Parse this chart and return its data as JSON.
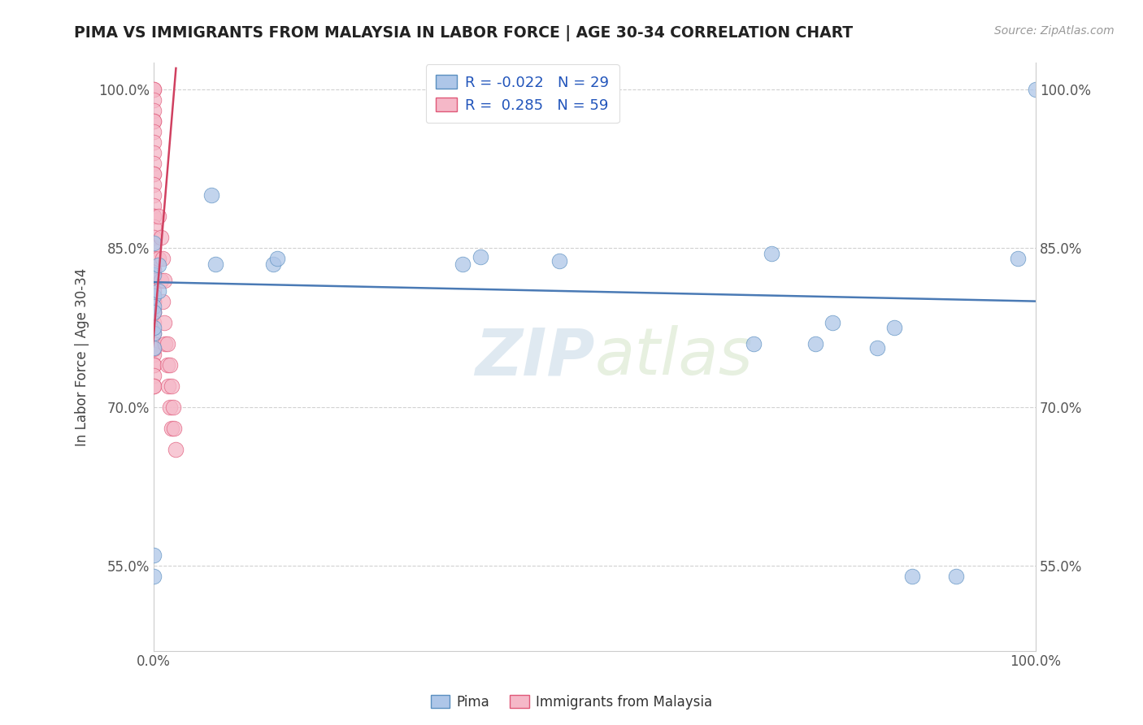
{
  "title": "PIMA VS IMMIGRANTS FROM MALAYSIA IN LABOR FORCE | AGE 30-34 CORRELATION CHART",
  "source": "Source: ZipAtlas.com",
  "ylabel": "In Labor Force | Age 30-34",
  "legend_pima_r": "-0.022",
  "legend_pima_n": "29",
  "legend_malaysia_r": "0.285",
  "legend_malaysia_n": "59",
  "watermark_zip": "ZIP",
  "watermark_atlas": "atlas",
  "pima_color": "#aec6e8",
  "malaysia_color": "#f5b8c8",
  "pima_edge_color": "#5a8fc0",
  "malaysia_edge_color": "#e05878",
  "pima_line_color": "#4a7ab5",
  "malaysia_line_color": "#d04060",
  "bg_color": "#ffffff",
  "grid_color": "#cccccc",
  "tick_color": "#555555",
  "title_color": "#222222",
  "source_color": "#999999",
  "ylabel_color": "#444444",
  "xlim": [
    0.0,
    1.0
  ],
  "ylim": [
    0.47,
    1.025
  ],
  "yticks": [
    0.55,
    0.7,
    0.85,
    1.0
  ],
  "ytick_labels": [
    "55.0%",
    "70.0%",
    "85.0%",
    "100.0%"
  ],
  "xtick_labels": [
    "0.0%",
    "100.0%"
  ],
  "pima_x": [
    0.0,
    0.0,
    0.0,
    0.0,
    0.0,
    0.0,
    0.005,
    0.005,
    0.065,
    0.07,
    0.135,
    0.14,
    0.0,
    0.0,
    0.35,
    0.37,
    0.46,
    0.68,
    0.7,
    0.75,
    0.77,
    0.82,
    0.84,
    0.86,
    0.91,
    0.98,
    1.0,
    0.0,
    0.0
  ],
  "pima_y": [
    0.805,
    0.825,
    0.855,
    0.795,
    0.77,
    0.79,
    0.834,
    0.81,
    0.9,
    0.835,
    0.835,
    0.84,
    0.756,
    0.775,
    0.835,
    0.842,
    0.838,
    0.76,
    0.845,
    0.76,
    0.78,
    0.756,
    0.775,
    0.54,
    0.54,
    0.84,
    1.0,
    0.56,
    0.54
  ],
  "malaysia_x": [
    0.0,
    0.0,
    0.0,
    0.0,
    0.0,
    0.0,
    0.0,
    0.0,
    0.0,
    0.0,
    0.0,
    0.0,
    0.0,
    0.0,
    0.0,
    0.0,
    0.0,
    0.0,
    0.0,
    0.0,
    0.0,
    0.0,
    0.0,
    0.0,
    0.0,
    0.0,
    0.0,
    0.0,
    0.0,
    0.0,
    0.0,
    0.0,
    0.0,
    0.0,
    0.0,
    0.0,
    0.0,
    0.0,
    0.0,
    0.0,
    0.005,
    0.005,
    0.008,
    0.008,
    0.01,
    0.01,
    0.012,
    0.012,
    0.013,
    0.015,
    0.015,
    0.016,
    0.018,
    0.018,
    0.02,
    0.02,
    0.022,
    0.023,
    0.025
  ],
  "malaysia_y": [
    1.0,
    1.0,
    0.99,
    0.98,
    0.97,
    0.97,
    0.96,
    0.95,
    0.94,
    0.93,
    0.92,
    0.92,
    0.91,
    0.9,
    0.89,
    0.88,
    0.88,
    0.87,
    0.86,
    0.85,
    0.84,
    0.83,
    0.83,
    0.82,
    0.81,
    0.8,
    0.8,
    0.79,
    0.79,
    0.78,
    0.77,
    0.76,
    0.75,
    0.755,
    0.74,
    0.74,
    0.73,
    0.72,
    0.72,
    0.8,
    0.88,
    0.84,
    0.86,
    0.82,
    0.84,
    0.8,
    0.82,
    0.78,
    0.76,
    0.76,
    0.74,
    0.72,
    0.7,
    0.74,
    0.72,
    0.68,
    0.7,
    0.68,
    0.66
  ],
  "pima_trend_x0": 0.0,
  "pima_trend_y0": 0.818,
  "pima_trend_x1": 1.0,
  "pima_trend_y1": 0.8,
  "malaysia_trend_x0": -0.005,
  "malaysia_trend_y0": 0.72,
  "malaysia_trend_x1": 0.025,
  "malaysia_trend_y1": 1.02
}
